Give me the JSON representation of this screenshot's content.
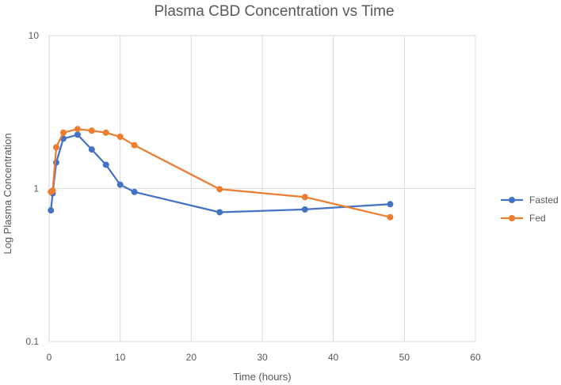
{
  "chart_data": {
    "type": "line",
    "title": "Plasma CBD Concentration vs Time",
    "xlabel": "Time (hours)",
    "ylabel": "Log Plasma Concentration",
    "xlim": [
      0,
      60
    ],
    "ylim": [
      0.1,
      10
    ],
    "yscale": "log",
    "x_ticks": [
      0,
      10,
      20,
      30,
      40,
      50,
      60
    ],
    "x_tick_labels": [
      "0",
      "10",
      "20",
      "30",
      "40",
      "50",
      "60"
    ],
    "y_ticks": [
      0.1,
      1,
      10
    ],
    "y_tick_labels": [
      "0.1",
      "1",
      "10"
    ],
    "grid": "both major",
    "legend_position": "right",
    "series": [
      {
        "name": "Fasted",
        "color": "#4472c4",
        "points": [
          {
            "x": 0.25,
            "y": 0.72
          },
          {
            "x": 0.5,
            "y": 0.93
          },
          {
            "x": 1,
            "y": 1.48
          },
          {
            "x": 2,
            "y": 2.12
          },
          {
            "x": 4,
            "y": 2.25
          },
          {
            "x": 6,
            "y": 1.8
          },
          {
            "x": 8,
            "y": 1.43
          },
          {
            "x": 10,
            "y": 1.06
          },
          {
            "x": 12,
            "y": 0.95
          },
          {
            "x": 24,
            "y": 0.7
          },
          {
            "x": 36,
            "y": 0.73
          },
          {
            "x": 48,
            "y": 0.79
          }
        ]
      },
      {
        "name": "Fed",
        "color": "#ed7d31",
        "points": [
          {
            "x": 0.25,
            "y": 0.95
          },
          {
            "x": 0.5,
            "y": 0.97
          },
          {
            "x": 1,
            "y": 1.86
          },
          {
            "x": 2,
            "y": 2.32
          },
          {
            "x": 4,
            "y": 2.45
          },
          {
            "x": 6,
            "y": 2.39
          },
          {
            "x": 8,
            "y": 2.32
          },
          {
            "x": 10,
            "y": 2.18
          },
          {
            "x": 12,
            "y": 1.92
          },
          {
            "x": 24,
            "y": 0.99
          },
          {
            "x": 36,
            "y": 0.88
          },
          {
            "x": 48,
            "y": 0.65
          }
        ]
      }
    ]
  }
}
